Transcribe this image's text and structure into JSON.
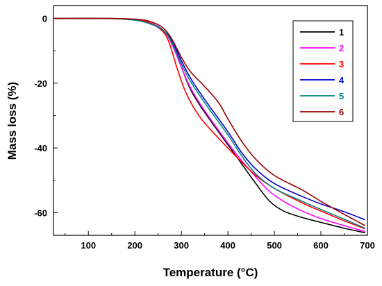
{
  "chart_data": {
    "type": "line",
    "title": "",
    "xlabel": "Temperature (°C)",
    "ylabel": "Mass loss (%)",
    "xlim": [
      25,
      700
    ],
    "ylim": [
      -67,
      4
    ],
    "xticks": [
      100,
      200,
      300,
      400,
      500,
      600,
      700
    ],
    "yticks": [
      0,
      -20,
      -40,
      -60
    ],
    "grid": false,
    "legend_position": "top-right",
    "series": [
      {
        "name": "1",
        "color": "#000000",
        "points": [
          [
            25,
            0
          ],
          [
            150,
            0
          ],
          [
            200,
            -0.3
          ],
          [
            230,
            -1.2
          ],
          [
            260,
            -3.5
          ],
          [
            280,
            -8
          ],
          [
            300,
            -15
          ],
          [
            320,
            -22
          ],
          [
            350,
            -29
          ],
          [
            400,
            -39
          ],
          [
            430,
            -45
          ],
          [
            460,
            -51
          ],
          [
            490,
            -56.5
          ],
          [
            520,
            -59.5
          ],
          [
            560,
            -61.5
          ],
          [
            600,
            -63
          ],
          [
            650,
            -64.8
          ],
          [
            695,
            -66.2
          ]
        ]
      },
      {
        "name": "2",
        "color": "#ff00ff",
        "points": [
          [
            25,
            0
          ],
          [
            150,
            0
          ],
          [
            200,
            -0.3
          ],
          [
            230,
            -1.2
          ],
          [
            260,
            -3.5
          ],
          [
            280,
            -8
          ],
          [
            300,
            -15
          ],
          [
            320,
            -21.5
          ],
          [
            350,
            -28.5
          ],
          [
            400,
            -38.5
          ],
          [
            430,
            -44
          ],
          [
            460,
            -49
          ],
          [
            490,
            -53.5
          ],
          [
            520,
            -56.5
          ],
          [
            560,
            -59.5
          ],
          [
            600,
            -61.8
          ],
          [
            650,
            -64
          ],
          [
            695,
            -65.8
          ]
        ]
      },
      {
        "name": "3",
        "color": "#ff0000",
        "points": [
          [
            25,
            0
          ],
          [
            150,
            0
          ],
          [
            200,
            -0.3
          ],
          [
            230,
            -1.2
          ],
          [
            260,
            -4
          ],
          [
            275,
            -8
          ],
          [
            290,
            -15
          ],
          [
            310,
            -23
          ],
          [
            340,
            -30.5
          ],
          [
            380,
            -37
          ],
          [
            420,
            -43
          ],
          [
            460,
            -48.5
          ],
          [
            500,
            -52.5
          ],
          [
            560,
            -57
          ],
          [
            600,
            -59.5
          ],
          [
            650,
            -62.5
          ],
          [
            695,
            -65
          ]
        ]
      },
      {
        "name": "4",
        "color": "#0000cc",
        "points": [
          [
            25,
            0
          ],
          [
            150,
            0
          ],
          [
            200,
            -0.5
          ],
          [
            230,
            -1.5
          ],
          [
            260,
            -3.5
          ],
          [
            280,
            -7
          ],
          [
            300,
            -13
          ],
          [
            320,
            -18.5
          ],
          [
            350,
            -25
          ],
          [
            400,
            -35
          ],
          [
            430,
            -41.5
          ],
          [
            460,
            -46.5
          ],
          [
            500,
            -51
          ],
          [
            560,
            -55
          ],
          [
            600,
            -57.3
          ],
          [
            650,
            -59.7
          ],
          [
            695,
            -62.2
          ]
        ]
      },
      {
        "name": "5",
        "color": "#008080",
        "points": [
          [
            25,
            0
          ],
          [
            150,
            0
          ],
          [
            200,
            -0.5
          ],
          [
            230,
            -1.5
          ],
          [
            260,
            -3.5
          ],
          [
            280,
            -7.5
          ],
          [
            300,
            -14
          ],
          [
            320,
            -19.5
          ],
          [
            350,
            -26
          ],
          [
            400,
            -36
          ],
          [
            430,
            -42.5
          ],
          [
            460,
            -48
          ],
          [
            500,
            -52.5
          ],
          [
            560,
            -56.5
          ],
          [
            600,
            -59
          ],
          [
            650,
            -62
          ],
          [
            695,
            -64.8
          ]
        ]
      },
      {
        "name": "6",
        "color": "#990000",
        "points": [
          [
            25,
            0
          ],
          [
            150,
            0
          ],
          [
            200,
            -0.2
          ],
          [
            230,
            -0.8
          ],
          [
            260,
            -2.8
          ],
          [
            280,
            -6.5
          ],
          [
            300,
            -12
          ],
          [
            320,
            -16.5
          ],
          [
            350,
            -21
          ],
          [
            380,
            -26
          ],
          [
            400,
            -31
          ],
          [
            430,
            -38
          ],
          [
            460,
            -43.5
          ],
          [
            500,
            -48.5
          ],
          [
            560,
            -53
          ],
          [
            600,
            -56.5
          ],
          [
            650,
            -60.5
          ],
          [
            695,
            -64
          ]
        ]
      }
    ]
  }
}
